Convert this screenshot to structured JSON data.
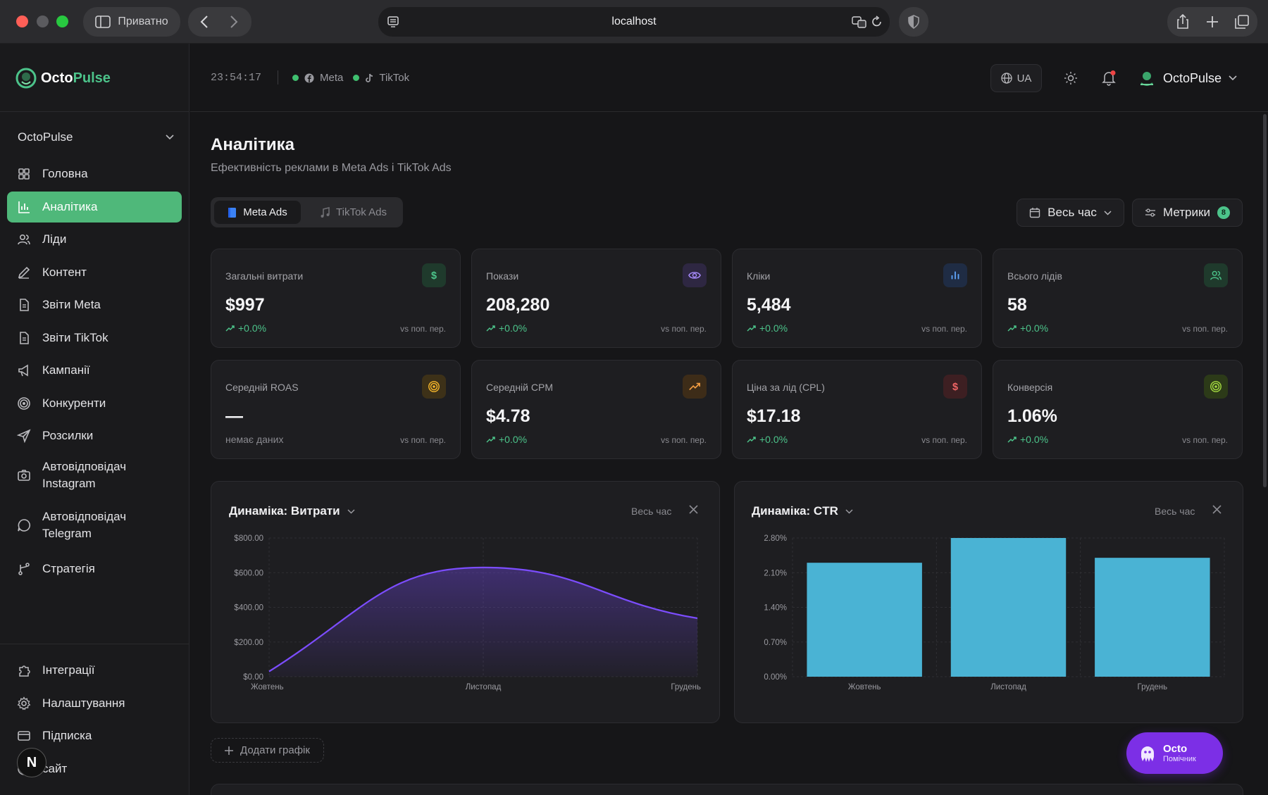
{
  "browser": {
    "private_label": "Приватно",
    "url": "localhost"
  },
  "sidebar": {
    "logo_part1": "Octo",
    "logo_part2": "Pulse",
    "workspace": "OctoPulse",
    "items": [
      {
        "label": "Головна",
        "icon": "grid-icon"
      },
      {
        "label": "Аналітика",
        "icon": "bar-chart-icon",
        "active": true
      },
      {
        "label": "Ліди",
        "icon": "users-icon"
      },
      {
        "label": "Контент",
        "icon": "pen-icon"
      },
      {
        "label": "Звіти Meta",
        "icon": "file-icon"
      },
      {
        "label": "Звіти TikTok",
        "icon": "file-icon"
      },
      {
        "label": "Кампанії",
        "icon": "megaphone-icon"
      },
      {
        "label": "Конкуренти",
        "icon": "target-icon"
      },
      {
        "label": "Розсилки",
        "icon": "send-icon"
      },
      {
        "label": "Автовідповідач Instagram",
        "icon": "camera-icon"
      },
      {
        "label": "Автовідповідач Telegram",
        "icon": "chat-icon"
      },
      {
        "label": "Стратегія",
        "icon": "branch-icon"
      }
    ],
    "bottom_items": [
      {
        "label": "Інтеграції",
        "icon": "puzzle-icon"
      },
      {
        "label": "Налаштування",
        "icon": "gear-icon"
      },
      {
        "label": "Підписка",
        "icon": "card-icon"
      },
      {
        "label": "сайт",
        "icon": "globe-icon"
      }
    ],
    "avatar_letter": "N"
  },
  "header": {
    "clock": "23:54:17",
    "status": [
      {
        "label": "Meta",
        "color": "#3fbf6f"
      },
      {
        "label": "TikTok",
        "color": "#3fbf6f"
      }
    ],
    "lang": "UA",
    "user": "OctoPulse"
  },
  "page": {
    "title": "Аналітика",
    "subtitle": "Ефективність реклами в Meta Ads і TikTok Ads",
    "tabs": [
      "Meta Ads",
      "TikTok Ads"
    ],
    "period_label": "Весь час",
    "metrics_label": "Метрики",
    "metrics_count": "8",
    "add_chart_label": "Додати графік"
  },
  "kpis": [
    {
      "label": "Загальні витрати",
      "value": "$997",
      "change": "+0.0%",
      "vs": "vs поп. пер.",
      "icon": "dollar-icon",
      "color": "#4cc38a",
      "bg": "#1f3a2c"
    },
    {
      "label": "Покази",
      "value": "208,280",
      "change": "+0.0%",
      "vs": "vs поп. пер.",
      "icon": "eye-icon",
      "color": "#a78bfa",
      "bg": "#2e2742"
    },
    {
      "label": "Кліки",
      "value": "5,484",
      "change": "+0.0%",
      "vs": "vs поп. пер.",
      "icon": "bars-icon",
      "color": "#60a5fa",
      "bg": "#1f2c44"
    },
    {
      "label": "Всього лідів",
      "value": "58",
      "change": "+0.0%",
      "vs": "vs поп. пер.",
      "icon": "users-icon",
      "color": "#4cc38a",
      "bg": "#1f3a2c"
    },
    {
      "label": "Середній ROAS",
      "value": "—",
      "change": "немає даних",
      "vs": "vs поп. пер.",
      "icon": "target-icon",
      "color": "#f5b62b",
      "bg": "#3d3118",
      "nodata": true
    },
    {
      "label": "Середній CPM",
      "value": "$4.78",
      "change": "+0.0%",
      "vs": "vs поп. пер.",
      "icon": "trend-icon",
      "color": "#f59e42",
      "bg": "#3d2c18"
    },
    {
      "label": "Ціна за лід (CPL)",
      "value": "$17.18",
      "change": "+0.0%",
      "vs": "vs поп. пер.",
      "icon": "dollar-icon",
      "color": "#f06565",
      "bg": "#3d1f22"
    },
    {
      "label": "Конверсія",
      "value": "1.06%",
      "change": "+0.0%",
      "vs": "vs поп. пер.",
      "icon": "target-icon",
      "color": "#a3d940",
      "bg": "#2c3a18"
    }
  ],
  "charts_meta": [
    {
      "title": "Динаміка: Витрати",
      "period": "Весь час"
    },
    {
      "title": "Динаміка: CTR",
      "period": "Весь час"
    }
  ],
  "chart_data": [
    {
      "type": "area",
      "title": "Динаміка: Витрати",
      "categories": [
        "Жовтень",
        "Листопад",
        "Грудень"
      ],
      "values": [
        30,
        630,
        337
      ],
      "yticks": [
        "$0.00",
        "$200.00",
        "$400.00",
        "$600.00",
        "$800.00"
      ],
      "ylim": [
        0,
        800
      ],
      "color": "#7c4dff"
    },
    {
      "type": "bar",
      "title": "Динаміка: CTR",
      "categories": [
        "Жовтень",
        "Листопад",
        "Грудень"
      ],
      "values": [
        2.3,
        2.8,
        2.4
      ],
      "yticks": [
        "0.00%",
        "0.70%",
        "1.40%",
        "2.10%",
        "2.80%"
      ],
      "ylim": [
        0,
        2.8
      ],
      "color": "#4ab3d4"
    }
  ],
  "assistant": {
    "name": "Octo",
    "sub": "Помічник"
  }
}
